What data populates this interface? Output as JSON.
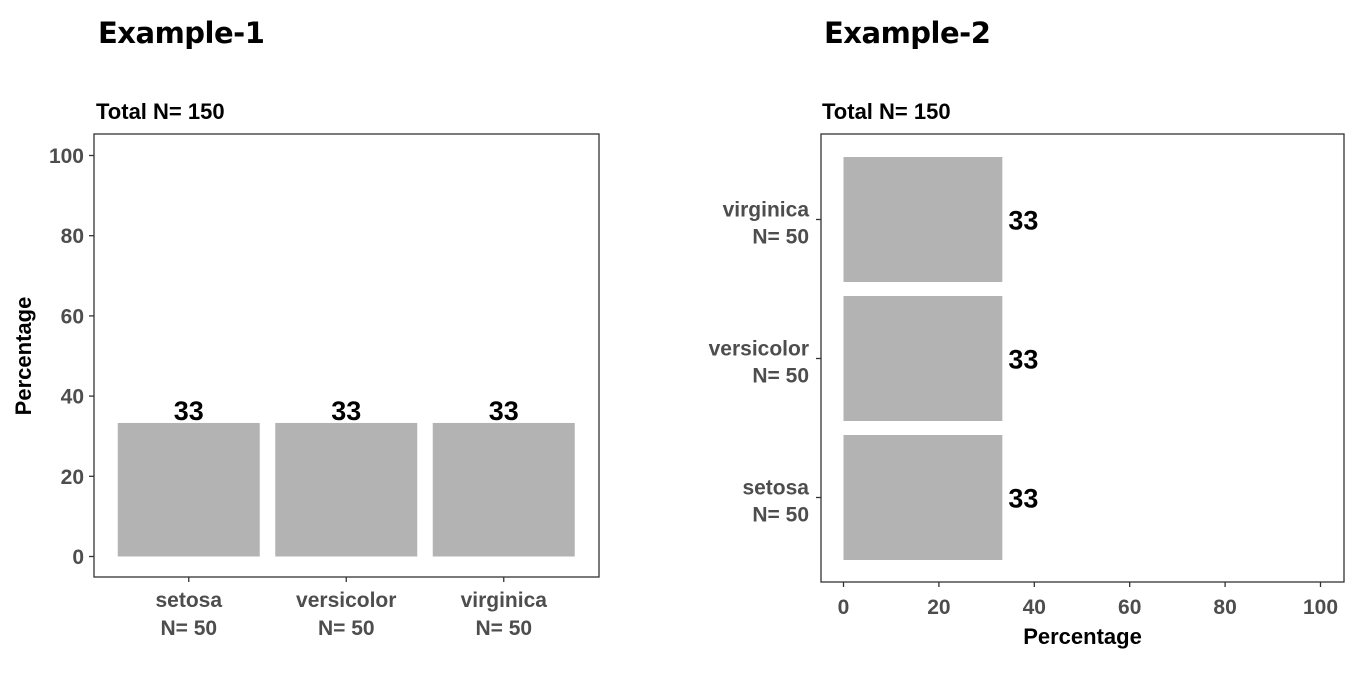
{
  "panels": [
    {
      "title": "Example-1"
    },
    {
      "title": "Example-2"
    }
  ],
  "chart_data": [
    {
      "type": "bar",
      "orientation": "vertical",
      "subtitle": "Total N= 150",
      "categories": [
        "setosa",
        "versicolor",
        "virginica"
      ],
      "category_counts": [
        "N= 50",
        "N= 50",
        "N= 50"
      ],
      "values": [
        33.3,
        33.3,
        33.3
      ],
      "data_labels": [
        "33",
        "33",
        "33"
      ],
      "xlabel": "",
      "ylabel": "Percentage",
      "ylim": [
        0,
        100
      ],
      "ticks": [
        0,
        20,
        40,
        60,
        80,
        100
      ],
      "bar_color": "#b3b3b3",
      "grid": false,
      "legend": "none"
    },
    {
      "type": "bar",
      "orientation": "horizontal",
      "subtitle": "Total N= 150",
      "categories": [
        "setosa",
        "versicolor",
        "virginica"
      ],
      "category_counts": [
        "N= 50",
        "N= 50",
        "N= 50"
      ],
      "values": [
        33.3,
        33.3,
        33.3
      ],
      "data_labels": [
        "33",
        "33",
        "33"
      ],
      "xlabel": "Percentage",
      "ylabel": "",
      "xlim": [
        0,
        100
      ],
      "ticks": [
        0,
        20,
        40,
        60,
        80,
        100
      ],
      "bar_color": "#b3b3b3",
      "grid": false,
      "legend": "none"
    }
  ]
}
